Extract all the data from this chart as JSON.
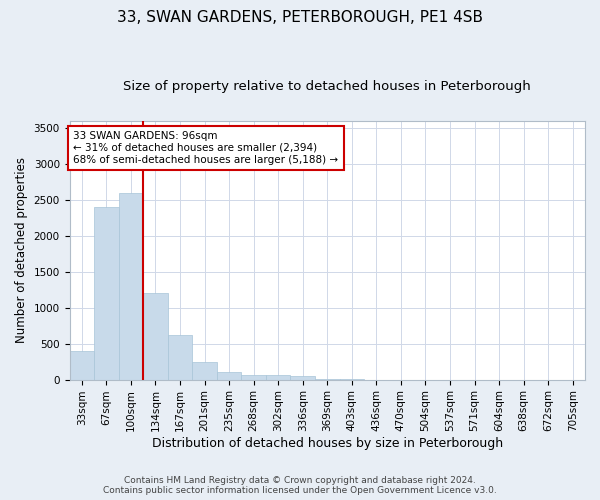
{
  "title": "33, SWAN GARDENS, PETERBOROUGH, PE1 4SB",
  "subtitle": "Size of property relative to detached houses in Peterborough",
  "xlabel": "Distribution of detached houses by size in Peterborough",
  "ylabel": "Number of detached properties",
  "footer_line1": "Contains HM Land Registry data © Crown copyright and database right 2024.",
  "footer_line2": "Contains public sector information licensed under the Open Government Licence v3.0.",
  "categories": [
    "33sqm",
    "67sqm",
    "100sqm",
    "134sqm",
    "167sqm",
    "201sqm",
    "235sqm",
    "268sqm",
    "302sqm",
    "336sqm",
    "369sqm",
    "403sqm",
    "436sqm",
    "470sqm",
    "504sqm",
    "537sqm",
    "571sqm",
    "604sqm",
    "638sqm",
    "672sqm",
    "705sqm"
  ],
  "bar_values": [
    400,
    2400,
    2600,
    1200,
    620,
    250,
    100,
    60,
    60,
    55,
    10,
    5,
    0,
    0,
    0,
    0,
    0,
    0,
    0,
    0,
    0
  ],
  "bar_color": "#c8daea",
  "bar_edge_color": "#a8c4d8",
  "property_line_bin": 2,
  "annotation_line1": "33 SWAN GARDENS: 96sqm",
  "annotation_line2": "← 31% of detached houses are smaller (2,394)",
  "annotation_line3": "68% of semi-detached houses are larger (5,188) →",
  "annotation_box_color": "#ffffff",
  "annotation_box_edge": "#cc0000",
  "red_line_color": "#cc0000",
  "ylim": [
    0,
    3600
  ],
  "yticks": [
    0,
    500,
    1000,
    1500,
    2000,
    2500,
    3000,
    3500
  ],
  "grid_color": "#d0d8e8",
  "outer_bg_color": "#e8eef5",
  "plot_bg_color": "#ffffff",
  "title_fontsize": 11,
  "subtitle_fontsize": 9.5,
  "xlabel_fontsize": 9,
  "ylabel_fontsize": 8.5,
  "tick_fontsize": 7.5,
  "footer_fontsize": 6.5
}
